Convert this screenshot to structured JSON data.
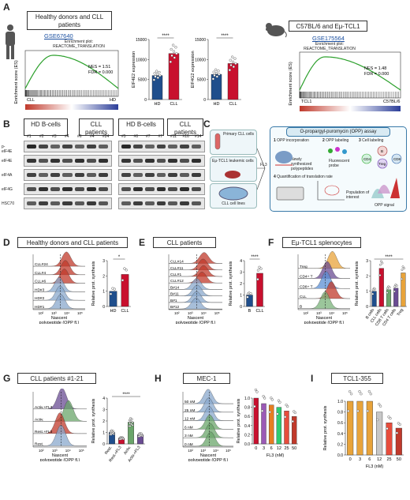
{
  "panels": {
    "A": {
      "label": "A",
      "human_box": "Healthy donors and CLL patients",
      "human_gse": "GSE67640",
      "human_plot_title_1": "Enrichment plot:",
      "human_plot_title_2": "REACTOME_TRANSLATION",
      "human_nes": "NES = 1.51",
      "human_fdr": "FDR = 0.000",
      "human_left": "CLL",
      "human_right": "HD",
      "es_ylabel": "Enrichment score (ES)",
      "mouse_box": "C57BL/6 and Eμ-TCL1",
      "mouse_gse": "GSE175564",
      "mouse_plot_title_1": "Enrichment plot:",
      "mouse_plot_title_2": "REACTOME_TRANSLATION",
      "mouse_nes": "NES = 1.48",
      "mouse_fdr": "FDR = 0.000",
      "mouse_left": "TCL1",
      "mouse_right": "C57BL/6",
      "eif4e2": {
        "ylabel": "EIF4E2 expression",
        "ticks": [
          "0",
          "5000",
          "10000",
          "15000"
        ],
        "cats": [
          "HD",
          "CLL"
        ],
        "sig": "****"
      },
      "eif4g2": {
        "ylabel": "EIF4G2 expression",
        "ticks": [
          "0",
          "5000",
          "10000",
          "15000"
        ],
        "cats": [
          "HD",
          "CLL"
        ],
        "sig": "****"
      }
    },
    "B": {
      "label": "B",
      "groups": [
        "HD B-cells",
        "CLL patients",
        "HD B-cells",
        "CLL patients"
      ],
      "lanes1": [
        "#1",
        "#2",
        "#3",
        "#4",
        "#6",
        "#4",
        "#24"
      ],
      "lanes2": [
        "#5",
        "#6",
        "#7",
        "#7",
        "#11",
        "#16",
        "#14"
      ],
      "rows": [
        "p-eIF4E",
        "eIF4E",
        "eIF4A",
        "eIF4G",
        "HSC70"
      ]
    },
    "C": {
      "label": "C",
      "assay_title": "O-propargyl-puromycin (OPP) assay",
      "sources": [
        "Primary CLL cells",
        "Eμ-TCL1 leukemic cells",
        "CLL cell lines"
      ],
      "fl3": "FL3",
      "step1": "OPP incorporation",
      "step1b": "Newly synthesized polypeptides",
      "step2": "OPP labeling",
      "step2b": "Fluorescent probe",
      "step3": "Cell labeling",
      "step4": "Quantification of translation rate",
      "pop": "Population of interest",
      "signal": "OPP signal",
      "cells": [
        "CD4",
        "Treg",
        "CD8",
        "B"
      ],
      "nums": [
        "1",
        "2",
        "3",
        "4"
      ]
    },
    "D": {
      "label": "D",
      "title": "Healthy donors and CLL patients",
      "samples": [
        "CLL#24",
        "CLL#4",
        "CLL#6",
        "HD#3",
        "HD#2",
        "HD#1"
      ],
      "xlabel1": "Nascent",
      "xlabel2": "polypeptide (OPP fl.)",
      "ylabel": "Relative prot. synthesis",
      "cats": [
        "HD",
        "CLL"
      ],
      "sig": "*"
    },
    "E": {
      "label": "E",
      "title": "CLL patients",
      "samples": [
        "CLL#14",
        "CLL#11",
        "CLL#1",
        "CLL#12",
        "B#14",
        "B#11",
        "B#1",
        "B#12"
      ],
      "xlabel1": "Nascent",
      "xlabel2": "polypeptide (OPP fl.)",
      "ylabel": "Relative prot. synthesis",
      "cats": [
        "B",
        "CLL"
      ],
      "sig": "****"
    },
    "F": {
      "label": "F",
      "title": "Eμ-TCL1 splenocytes",
      "samples": [
        "Treg",
        "CD4+ T",
        "CD8+ T",
        "CLL",
        "B"
      ],
      "xlabel1": "Nascent",
      "xlabel2": "polypeptide (OPP fl.)",
      "ylabel": "Relative prot. synthesis",
      "cats": [
        "B cells",
        "CLL cells",
        "CD8 T cells",
        "CD4 T cells",
        "Treg"
      ],
      "sig": "****"
    },
    "G": {
      "label": "G",
      "title": "CLL patients #1-21",
      "samples": [
        "Activ.+FL3",
        "Activ.",
        "Rest.+FL3",
        "Rest."
      ],
      "xlabel1": "Nascent",
      "xlabel2": "polypeptide (OPP fl.)",
      "ylabel": "Relative prot. synthesis",
      "cats": [
        "Rest.",
        "Rest.+FL3",
        "Activ.",
        "Activ.+FL3"
      ],
      "sig": "****"
    },
    "H": {
      "label": "H",
      "title": "MEC-1",
      "samples": [
        "50 nM",
        "25 nM",
        "12 nM",
        "6 nM",
        "3 nM",
        "0 nM"
      ],
      "xlabel1": "Nascent",
      "xlabel2": "polypeptide (OPP fl.)",
      "ylabel": "Relative prot. synthesis",
      "xlabel_bar": "FL3 (nM)",
      "cats": [
        "0",
        "3",
        "6",
        "12",
        "25",
        "50"
      ]
    },
    "I": {
      "label": "I",
      "title": "TCL1-355",
      "ylabel": "Relative prot. synthesis",
      "xlabel_bar": "FL3 (nM)",
      "cats": [
        "0",
        "3",
        "6",
        "12",
        "25",
        "50"
      ]
    }
  },
  "chart_data": [
    {
      "type": "bar",
      "categories": [
        "HD",
        "CLL"
      ],
      "values": [
        6000,
        11500
      ],
      "ylabel": "EIF4E2 expression",
      "ylim": [
        0,
        15000
      ]
    },
    {
      "type": "bar",
      "categories": [
        "HD",
        "CLL"
      ],
      "values": [
        6300,
        9000
      ],
      "ylabel": "EIF4G2 expression",
      "ylim": [
        0,
        15000
      ]
    },
    {
      "type": "bar",
      "categories": [
        "HD",
        "CLL"
      ],
      "values": [
        1.0,
        2.1
      ],
      "ylabel": "Relative prot. synthesis",
      "ylim": [
        0,
        3
      ]
    },
    {
      "type": "bar",
      "categories": [
        "B",
        "CLL"
      ],
      "values": [
        1.0,
        2.9
      ],
      "ylabel": "Relative prot. synthesis",
      "ylim": [
        0,
        4
      ]
    },
    {
      "type": "bar",
      "categories": [
        "B cells",
        "CLL cells",
        "CD8 T cells",
        "CD4 T cells",
        "Treg"
      ],
      "values": [
        1.0,
        2.5,
        1.1,
        1.2,
        2.2
      ],
      "ylabel": "Relative prot. synthesis",
      "ylim": [
        0,
        3
      ]
    },
    {
      "type": "bar",
      "categories": [
        "Rest.",
        "Rest.+FL3",
        "Activ.",
        "Activ.+FL3"
      ],
      "values": [
        1.0,
        0.5,
        1.9,
        0.8
      ],
      "ylabel": "Relative prot. synthesis",
      "ylim": [
        0,
        4
      ]
    },
    {
      "type": "bar",
      "categories": [
        "0",
        "3",
        "6",
        "12",
        "25",
        "50"
      ],
      "values": [
        1.0,
        0.88,
        0.85,
        0.8,
        0.72,
        0.6
      ],
      "ylabel": "Relative prot. synthesis",
      "xlabel": "FL3 (nM)",
      "ylim": [
        0,
        1.0
      ]
    },
    {
      "type": "bar",
      "categories": [
        "0",
        "3",
        "6",
        "12",
        "25",
        "50"
      ],
      "values": [
        1.0,
        1.0,
        1.0,
        0.8,
        0.6,
        0.5
      ],
      "ylabel": "Relative prot. synthesis",
      "xlabel": "FL3 (nM)",
      "ylim": [
        0,
        1.0
      ]
    }
  ]
}
